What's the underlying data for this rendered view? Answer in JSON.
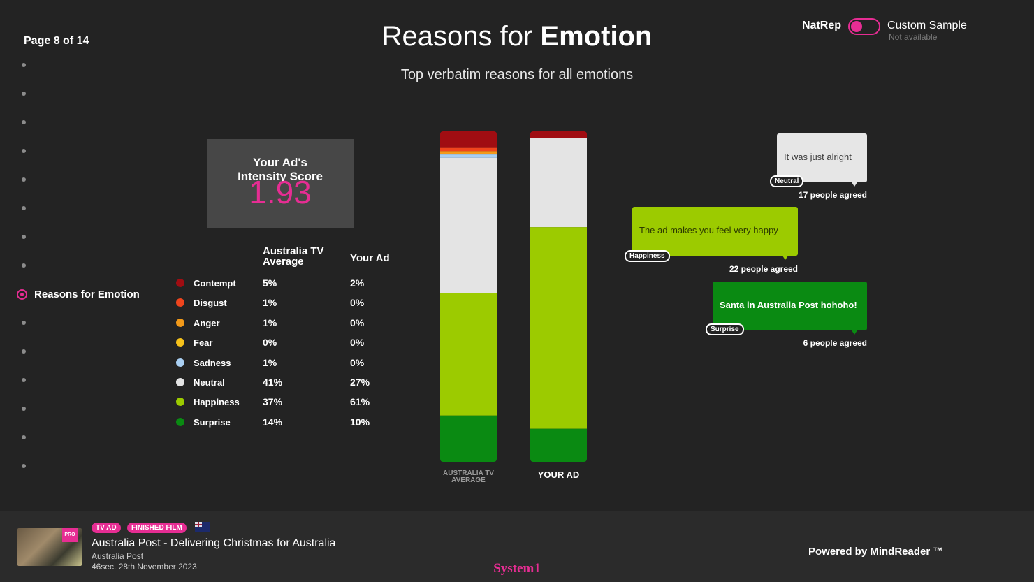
{
  "page_indicator": "Page 8 of 14",
  "nav": {
    "active_label": "Reasons for Emotion"
  },
  "title": {
    "light": "Reasons for ",
    "bold": "Emotion"
  },
  "subtitle": "Top verbatim reasons for all emotions",
  "toggle": {
    "left_label": "NatRep",
    "right_label": "Custom Sample",
    "right_sub": "Not available"
  },
  "score": {
    "label": "Your Ad's Intensity Score",
    "value": "1.93"
  },
  "table": {
    "col1": "Australia TV Average",
    "col2": "Your Ad",
    "rows": [
      {
        "name": "Contempt",
        "avg": "5%",
        "ad": "2%"
      },
      {
        "name": "Disgust",
        "avg": "1%",
        "ad": "0%"
      },
      {
        "name": "Anger",
        "avg": "1%",
        "ad": "0%"
      },
      {
        "name": "Fear",
        "avg": "0%",
        "ad": "0%"
      },
      {
        "name": "Sadness",
        "avg": "1%",
        "ad": "0%"
      },
      {
        "name": "Neutral",
        "avg": "41%",
        "ad": "27%"
      },
      {
        "name": "Happiness",
        "avg": "37%",
        "ad": "61%"
      },
      {
        "name": "Surprise",
        "avg": "14%",
        "ad": "10%"
      }
    ]
  },
  "colors": {
    "accent": "#e62d93",
    "Contempt": "#a00d12",
    "Disgust": "#f0451d",
    "Anger": "#f29a1a",
    "Fear": "#f6c21b",
    "Sadness": "#a9cff2",
    "Neutral": "#e4e4e4",
    "Happiness": "#9ccb00",
    "Surprise": "#0a8a12"
  },
  "chart_data": {
    "type": "bar",
    "stacked": true,
    "categories": [
      "AUSTRALIA TV AVERAGE",
      "YOUR AD"
    ],
    "series": [
      {
        "name": "Contempt",
        "values": [
          5,
          2
        ]
      },
      {
        "name": "Disgust",
        "values": [
          1,
          0
        ]
      },
      {
        "name": "Anger",
        "values": [
          1,
          0
        ]
      },
      {
        "name": "Fear",
        "values": [
          0,
          0
        ]
      },
      {
        "name": "Sadness",
        "values": [
          1,
          0
        ]
      },
      {
        "name": "Neutral",
        "values": [
          41,
          27
        ]
      },
      {
        "name": "Happiness",
        "values": [
          37,
          61
        ]
      },
      {
        "name": "Surprise",
        "values": [
          14,
          10
        ]
      }
    ],
    "ylim": [
      0,
      100
    ],
    "grid": false
  },
  "verbatims": [
    {
      "text": "It was just alright",
      "emotion": "Neutral",
      "agreed": "17 people agreed"
    },
    {
      "text": "The ad makes you feel very happy",
      "emotion": "Happiness",
      "agreed": "22 people agreed"
    },
    {
      "text": "Santa in Australia Post hohoho!",
      "emotion": "Surprise",
      "agreed": "6 people agreed"
    }
  ],
  "footer": {
    "badges": [
      "TV AD",
      "FINISHED FILM"
    ],
    "thumb_badge": "PRO",
    "ad_title": "Australia Post - Delivering Christmas for Australia",
    "brand": "Australia Post",
    "meta": "46sec. 28th November 2023",
    "logo": "System1",
    "powered": "Powered by MindReader ™"
  }
}
